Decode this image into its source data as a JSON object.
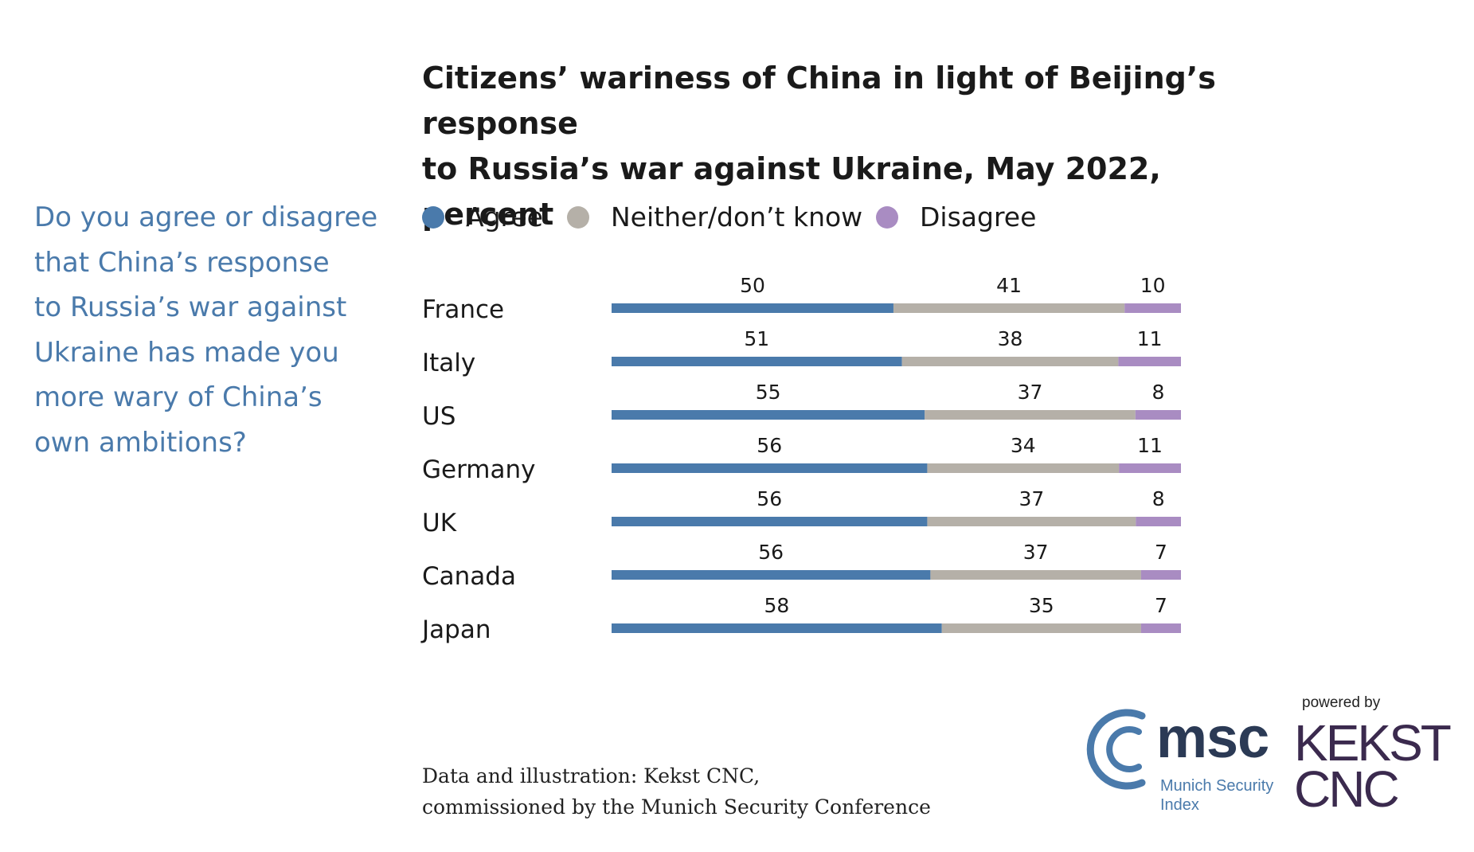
{
  "title": {
    "line1": "Citizens’ wariness of China in light of Beijing’s response",
    "line2": "to Russia’s war against Ukraine, May 2022, percent"
  },
  "question": {
    "lines": [
      "Do you agree or disagree",
      "that China’s response",
      "to Russia’s war against",
      "Ukraine has made you",
      "more wary of China’s",
      "own ambitions?"
    ]
  },
  "colors": {
    "agree": "#4a7aab",
    "neither": "#b5b0a8",
    "disagree": "#a98cc2",
    "question_text": "#4a7aab"
  },
  "chart_data": {
    "type": "bar",
    "orientation": "horizontal",
    "stacked": true,
    "categories": [
      "France",
      "Italy",
      "US",
      "Germany",
      "UK",
      "Canada",
      "Japan"
    ],
    "series": [
      {
        "name": "Agree",
        "values": [
          50,
          51,
          55,
          56,
          56,
          56,
          58
        ]
      },
      {
        "name": "Neither/don’t know",
        "values": [
          41,
          38,
          37,
          34,
          37,
          37,
          35
        ]
      },
      {
        "name": "Disagree",
        "values": [
          10,
          11,
          8,
          11,
          8,
          7,
          7
        ]
      }
    ],
    "legend_position": "top",
    "grid": false,
    "data_labels": true
  },
  "source": {
    "line1": "Data and illustration: Kekst CNC,",
    "line2": "commissioned by the Munich Security Conference"
  },
  "logos": {
    "msc_word": "msc",
    "msc_sub_line1": "Munich Security",
    "msc_sub_line2": "Index",
    "powered_by": "powered by",
    "kekst_line1": "KEKST",
    "kekst_line2": "CNC"
  }
}
